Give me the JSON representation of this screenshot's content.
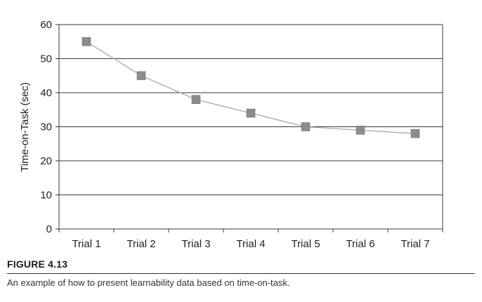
{
  "figure": {
    "label": "FIGURE 4.13",
    "caption": "An example of how to present learnability data based on time-on-task."
  },
  "chart_data": {
    "type": "line",
    "title": "",
    "xlabel": "",
    "ylabel": "Time-on-Task (sec)",
    "categories": [
      "Trial 1",
      "Trial 2",
      "Trial 3",
      "Trial 4",
      "Trial 5",
      "Trial 6",
      "Trial 7"
    ],
    "values": [
      55,
      45,
      38,
      34,
      30,
      29,
      28
    ],
    "ylim": [
      0,
      60
    ],
    "yticks": [
      0,
      10,
      20,
      30,
      40,
      50,
      60
    ],
    "grid": "horizontal",
    "legend": "none",
    "marker": "square",
    "colors": {
      "line": "#a8a8a8",
      "marker": "#8c8c8c",
      "grid": "#3a3a3a",
      "axis": "#3a3a3a"
    }
  }
}
